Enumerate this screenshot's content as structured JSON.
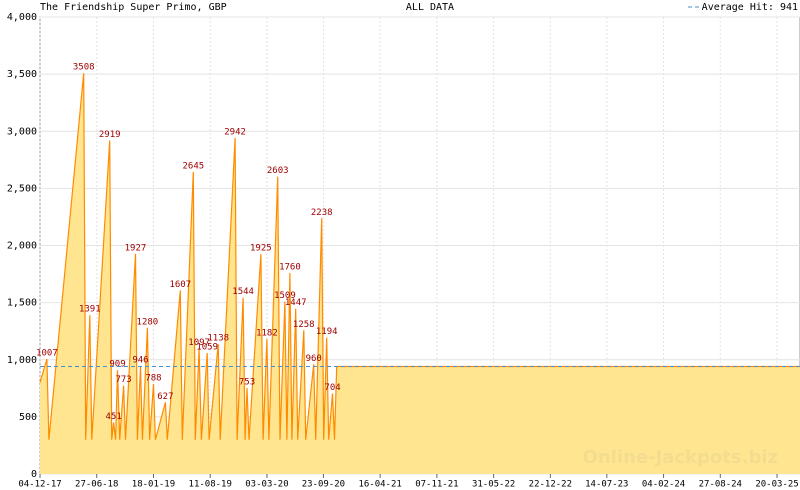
{
  "chart_data": {
    "type": "area",
    "title": "The Friendship Super Primo, GBP",
    "subtitle": "ALL DATA",
    "watermark": "Online-Jackpots.biz",
    "color": "#ff8c00",
    "fill": "#ffe590",
    "grid": true,
    "average": 941,
    "average_label": "Average Hit: 941",
    "average_color": "#4a90c8",
    "legend": "top-right",
    "x": [
      "2017-12-04",
      "2017-12-29",
      "2018-01-05",
      "2018-05-11",
      "2018-05-18",
      "2018-06-02",
      "2018-06-09",
      "2018-08-13",
      "2018-08-20",
      "2018-08-27",
      "2018-09-03",
      "2018-09-10",
      "2018-09-18",
      "2018-10-02",
      "2018-10-09",
      "2018-11-14",
      "2018-11-21",
      "2018-12-02",
      "2018-12-09",
      "2018-12-27",
      "2019-01-04",
      "2019-01-18",
      "2019-01-25",
      "2019-03-02",
      "2019-03-09",
      "2019-04-25",
      "2019-05-02",
      "2019-06-11",
      "2019-06-18",
      "2019-07-02",
      "2019-07-10",
      "2019-07-31",
      "2019-08-07",
      "2019-09-09",
      "2019-09-16",
      "2019-11-09",
      "2019-11-16",
      "2019-12-08",
      "2019-12-15",
      "2019-12-22",
      "2019-12-29",
      "2020-02-10",
      "2020-02-18",
      "2020-03-03",
      "2020-03-10",
      "2020-04-11",
      "2020-04-19",
      "2020-05-07",
      "2020-05-14",
      "2020-05-25",
      "2020-06-01",
      "2020-06-15",
      "2020-06-22",
      "2020-07-14",
      "2020-07-21",
      "2020-08-19",
      "2020-08-26",
      "2020-09-17",
      "2020-09-24",
      "2020-10-05",
      "2020-10-12",
      "2020-10-26",
      "2020-11-02",
      "2020-11-10",
      "2025-06-11"
    ],
    "values": [
      800,
      1007,
      300,
      3508,
      300,
      1391,
      300,
      2919,
      300,
      451,
      300,
      909,
      300,
      773,
      300,
      1927,
      300,
      946,
      300,
      1280,
      300,
      788,
      300,
      627,
      300,
      1607,
      300,
      2645,
      300,
      1097,
      300,
      1059,
      300,
      1138,
      300,
      2942,
      300,
      1544,
      300,
      753,
      300,
      1925,
      300,
      1182,
      300,
      2603,
      300,
      1509,
      300,
      1760,
      300,
      1447,
      300,
      1258,
      300,
      960,
      300,
      2238,
      300,
      1194,
      300,
      704,
      300,
      941,
      941
    ],
    "value_labels": [
      null,
      "1007",
      null,
      "3508",
      null,
      "1391",
      null,
      "2919",
      null,
      "451",
      null,
      "909",
      null,
      "773",
      null,
      "1927",
      null,
      "946",
      null,
      "1280",
      null,
      "788",
      null,
      "627",
      null,
      "1607",
      null,
      "2645",
      null,
      "1097",
      null,
      "1059",
      null,
      "1138",
      null,
      "2942",
      null,
      "1544",
      null,
      "753",
      null,
      "1925",
      null,
      "1182",
      null,
      "2603",
      null,
      "1509",
      null,
      "1760",
      null,
      "1447",
      null,
      "1258",
      null,
      "960",
      null,
      "2238",
      null,
      "1194",
      null,
      "704",
      null,
      null,
      null
    ],
    "xlim": [
      "2017-12-04",
      "2025-06-11"
    ],
    "xticks": [
      {
        "value": "2017-12-04",
        "label": "04-12-17"
      },
      {
        "value": "2018-06-27",
        "label": "27-06-18"
      },
      {
        "value": "2019-01-18",
        "label": "18-01-19"
      },
      {
        "value": "2019-08-11",
        "label": "11-08-19"
      },
      {
        "value": "2020-03-03",
        "label": "03-03-20"
      },
      {
        "value": "2020-09-23",
        "label": "23-09-20"
      },
      {
        "value": "2021-04-16",
        "label": "16-04-21"
      },
      {
        "value": "2021-11-07",
        "label": "07-11-21"
      },
      {
        "value": "2022-05-31",
        "label": "31-05-22"
      },
      {
        "value": "2022-12-22",
        "label": "22-12-22"
      },
      {
        "value": "2023-07-14",
        "label": "14-07-23"
      },
      {
        "value": "2024-02-04",
        "label": "04-02-24"
      },
      {
        "value": "2024-08-27",
        "label": "27-08-24"
      },
      {
        "value": "2025-03-20",
        "label": "20-03-25"
      }
    ],
    "ylim": [
      0,
      4000
    ],
    "yticks": [
      0,
      500,
      {
        "value": 1000,
        "label": "1,000"
      },
      {
        "value": 1500,
        "label": "1,500"
      },
      {
        "value": 2000,
        "label": "2,000"
      },
      {
        "value": 2500,
        "label": "2,500"
      },
      {
        "value": 3000,
        "label": "3,000"
      },
      {
        "value": 3500,
        "label": "3,500"
      },
      {
        "value": 4000,
        "label": "4,000"
      }
    ]
  }
}
